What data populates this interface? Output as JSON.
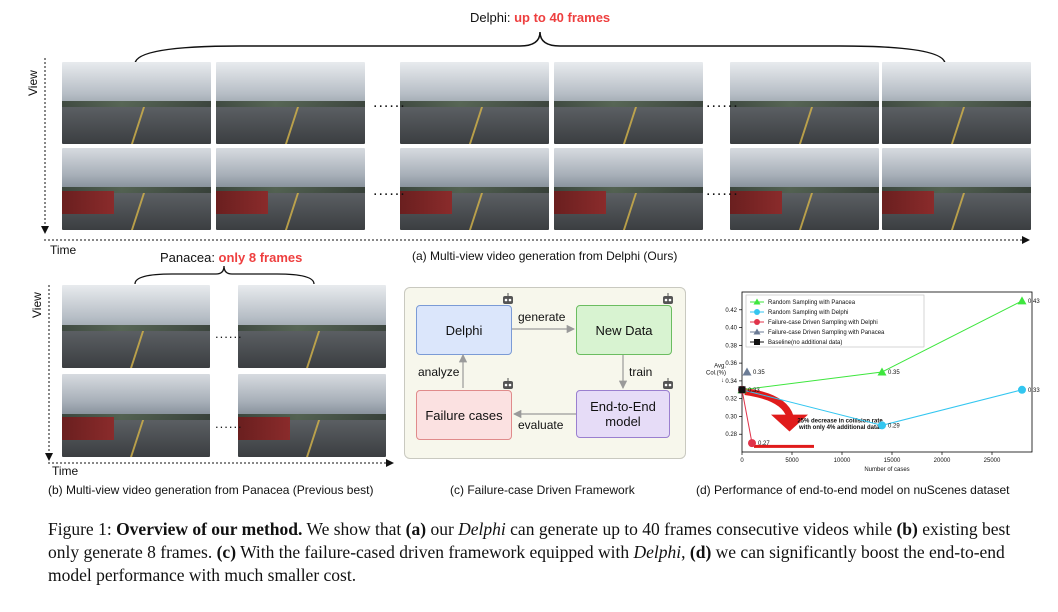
{
  "panel_a": {
    "header_prefix": "Delphi: ",
    "header_emph": "up to 40 frames",
    "axis_view": "View",
    "axis_time": "Time",
    "ellipsis": "......",
    "caption": "(a) Multi-view video generation from Delphi (Ours)"
  },
  "panel_b": {
    "header_prefix": "Panacea: ",
    "header_emph": "only 8 frames",
    "axis_view": "View",
    "axis_time": "Time",
    "ellipsis": "......",
    "caption": "(b) Multi-view video generation from Panacea (Previous best)"
  },
  "panel_c": {
    "node_delphi": "Delphi",
    "node_new_data": "New Data",
    "node_failure": "Failure cases",
    "node_e2e": "End-to-End model",
    "edge_generate": "generate",
    "edge_train": "train",
    "edge_evaluate": "evaluate",
    "edge_analyze": "analyze",
    "caption": "(c) Failure-case Driven Framework",
    "colors": {
      "delphi": "#dbe6fb",
      "new_data": "#d8f3d1",
      "failure": "#fbe1e1",
      "e2e": "#e6dcf7",
      "bg": "#f7f7ec"
    }
  },
  "panel_d": {
    "caption": "(d) Performance of end-to-end model on nuScenes dataset",
    "annotation": "25% decrease in collision rate with only 4% additional data.",
    "annotation_line1": "25% decrease in collision rate",
    "annotation_line2": "with only 4% additional data."
  },
  "chart_data": {
    "type": "line",
    "title": "",
    "xlabel": "Number of cases",
    "ylabel": "Avg. Col.(%) ↓",
    "xlim": [
      0,
      29000
    ],
    "ylim": [
      0.26,
      0.44
    ],
    "xticks": [
      0,
      5000,
      10000,
      15000,
      20000,
      25000
    ],
    "yticks": [
      0.28,
      0.3,
      0.32,
      0.34,
      0.36,
      0.38,
      0.4,
      0.42
    ],
    "legend_position": "top-left",
    "series": [
      {
        "name": "Random Sampling with Panacea",
        "color": "#3ee63e",
        "marker": "triangle",
        "x": [
          0,
          14000,
          28000
        ],
        "y": [
          0.33,
          0.35,
          0.43
        ],
        "labels": [
          "",
          "0.35",
          "0.43"
        ]
      },
      {
        "name": "Random Sampling with Delphi",
        "color": "#33c6f0",
        "marker": "circle",
        "x": [
          0,
          14000,
          28000
        ],
        "y": [
          0.33,
          0.29,
          0.33
        ],
        "labels": [
          "",
          "0.29",
          "0.33"
        ]
      },
      {
        "name": "Failure-case Driven Sampling with Delphi",
        "color": "#e0334a",
        "marker": "circle",
        "x": [
          0,
          1000
        ],
        "y": [
          0.33,
          0.27
        ],
        "labels": [
          "",
          "0.27"
        ]
      },
      {
        "name": "Failure-case Driven Sampling with Panacea",
        "color": "#6b7b95",
        "marker": "triangle",
        "x": [
          500
        ],
        "y": [
          0.35
        ],
        "labels": [
          "0.35"
        ]
      },
      {
        "name": "Baseline(no additional data)",
        "color": "#111111",
        "marker": "square",
        "x": [
          0
        ],
        "y": [
          0.33
        ],
        "labels": [
          "0.33"
        ]
      }
    ]
  },
  "figure_caption": {
    "label": "Figure 1: ",
    "title": "Overview of our method.",
    "t1": " We show that ",
    "a": "(a)",
    "t2": " our ",
    "delphi1": "Delphi",
    "t3": " can generate up to 40 frames consecutive videos while ",
    "b": "(b)",
    "t4": " existing best only generate 8 frames. ",
    "c": "(c)",
    "t5": " With the failure-cased driven framework equipped with ",
    "delphi2": "Delphi",
    "t6": ", ",
    "d": "(d)",
    "t7": " we can significantly boost the end-to-end model performance with much smaller cost."
  }
}
